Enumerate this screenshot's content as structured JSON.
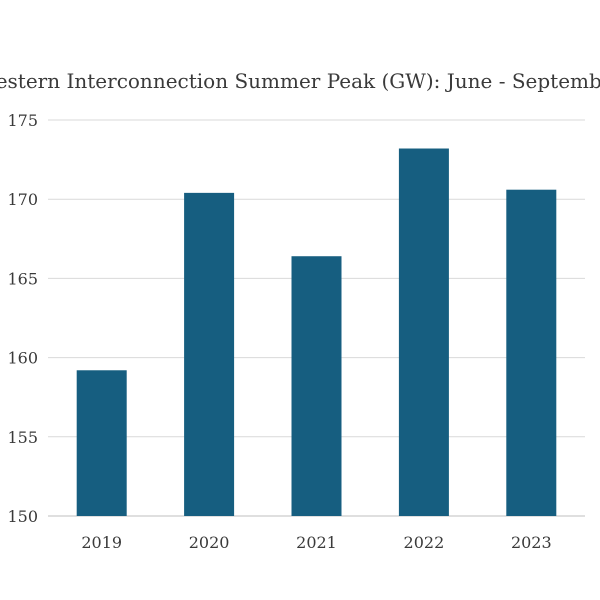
{
  "chart_data": {
    "type": "bar",
    "title": "Western Interconnection Summer Peak (GW): June - September",
    "categories": [
      "2019",
      "2020",
      "2021",
      "2022",
      "2023"
    ],
    "values": [
      159.2,
      170.4,
      166.4,
      173.2,
      170.6
    ],
    "yticks": [
      "150",
      "155",
      "160",
      "165",
      "170",
      "175"
    ],
    "ylim": [
      150,
      175
    ],
    "xlabel": "",
    "ylabel": "",
    "grid": true,
    "legend": "none",
    "bar_color": "#165e80"
  }
}
